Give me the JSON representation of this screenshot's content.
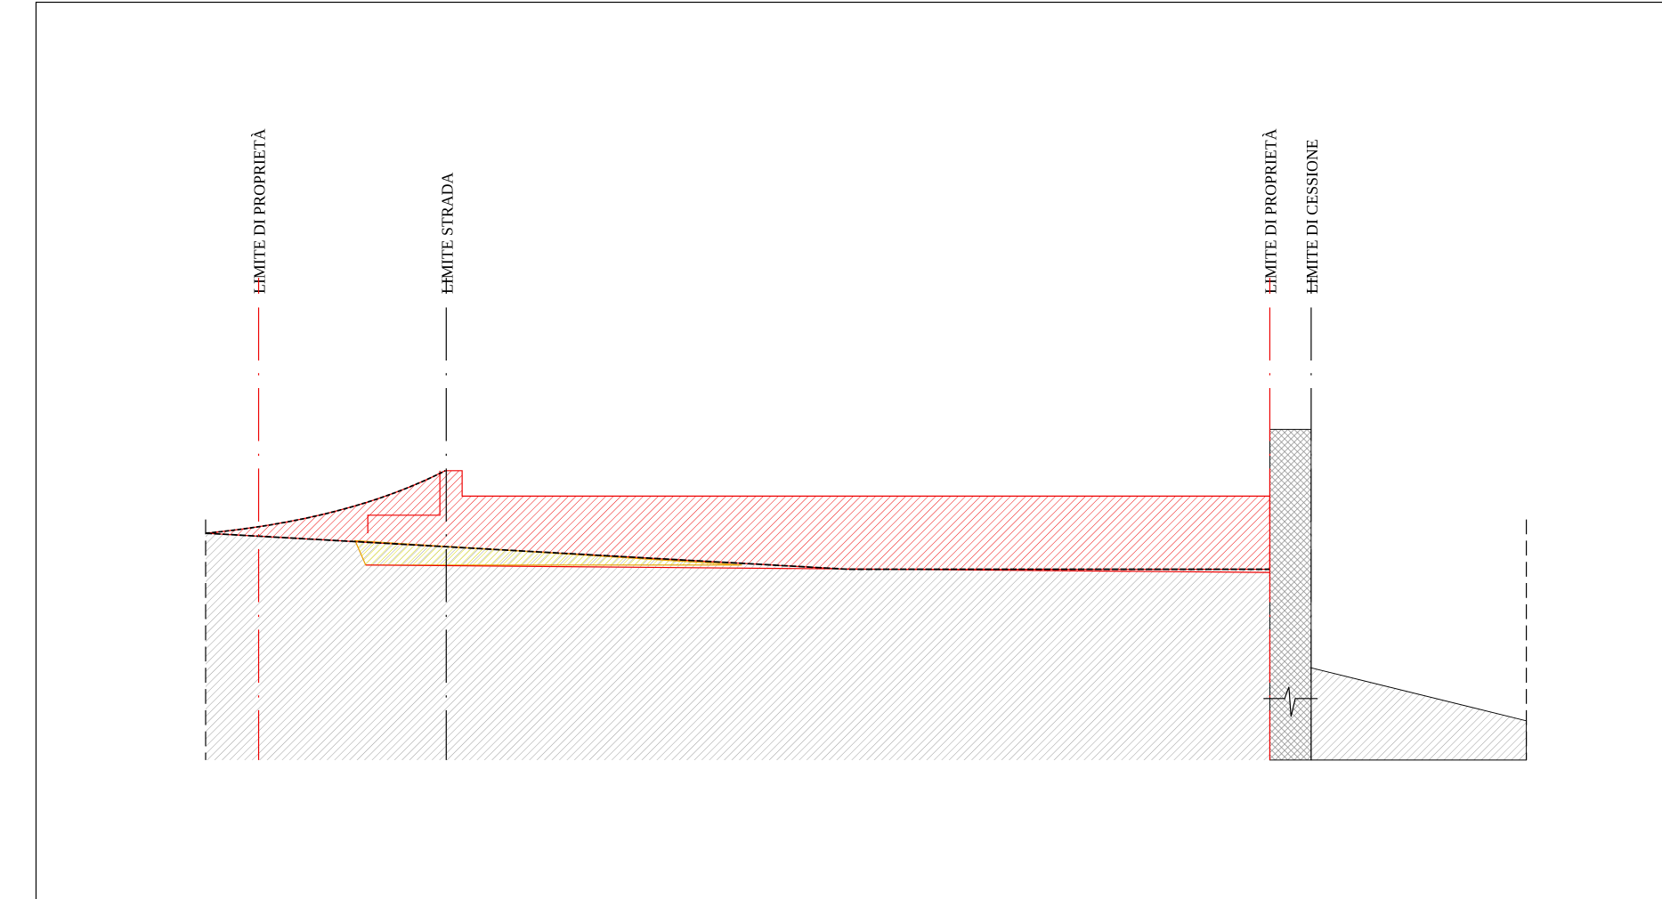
{
  "labels": [
    "LIMITE DI PROPRIETÀ",
    "LIMITE STRADA",
    "LIMITE DI PROPRIETÀ",
    "LIMITE DI CESSIONE"
  ]
}
